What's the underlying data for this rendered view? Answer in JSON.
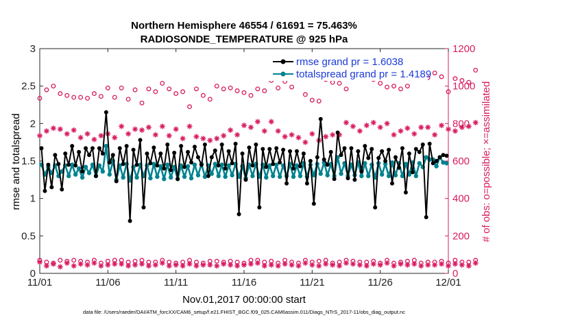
{
  "chart_data": {
    "type": "line",
    "title_line1": "Northern Hemisphere 46554 / 61691 = 75.463%",
    "title_line2": "RADIOSONDE_TEMPERATURE @ 925 hPa",
    "ylabel_left": "rmse and totalspread",
    "ylabel_right": "# of obs: o=possible; ×=assimilated",
    "xlabel": "Nov.01,2017 00:00:00 start",
    "footnote": "data file: /Users/raeder/DAI/ATM_forcXX/CAM6_setup/f.e21.FHIST_BGC.f09_025.CAM6assim.011/Diags_NTrS_2017-11/obs_diag_output.nc",
    "x_range": [
      0,
      30
    ],
    "x_tick_values": [
      0,
      5,
      10,
      15,
      20,
      25,
      30
    ],
    "x_tick_labels": [
      "11/01",
      "11/06",
      "11/11",
      "11/16",
      "11/21",
      "11/26",
      "12/01"
    ],
    "ylim_left": [
      0,
      3
    ],
    "y_left_ticks": [
      0,
      0.5,
      1,
      1.5,
      2,
      2.5,
      3
    ],
    "y_left_tick_labels": [
      "0",
      "0.5",
      "1",
      "1.5",
      "2",
      "2.5",
      "3"
    ],
    "ylim_right": [
      0,
      1200
    ],
    "y_right_ticks": [
      0,
      200,
      400,
      600,
      800,
      1000,
      1200
    ],
    "y_right_tick_labels": [
      "0",
      "200",
      "400",
      "600",
      "800",
      "1000",
      "1200"
    ],
    "colors": {
      "rmse": "#000000",
      "spread": "#00838f",
      "counts": "#d81b60",
      "legend_text": "#1a3ad8",
      "axis_right": "#d81b60"
    },
    "series": [
      {
        "name": "rmse grand pr = 1.6038",
        "axis": "left",
        "x_start": 0.125,
        "x_step": 0.25,
        "values": [
          1.67,
          1.1,
          1.45,
          1.15,
          1.58,
          1.46,
          1.12,
          1.6,
          1.45,
          1.7,
          1.44,
          1.62,
          1.36,
          1.67,
          1.58,
          1.67,
          1.3,
          1.67,
          1.6,
          2.15,
          1.48,
          1.58,
          1.23,
          1.67,
          1.46,
          1.7,
          0.7,
          1.65,
          1.45,
          1.78,
          0.88,
          1.6,
          1.47,
          1.68,
          1.44,
          1.6,
          1.4,
          1.72,
          1.38,
          1.61,
          1.26,
          1.7,
          1.42,
          1.62,
          1.48,
          1.69,
          1.55,
          1.45,
          1.72,
          1.3,
          1.55,
          1.64,
          1.44,
          1.72,
          1.4,
          1.63,
          1.47,
          1.73,
          0.79,
          1.6,
          1.25,
          1.68,
          1.44,
          1.72,
          0.88,
          1.66,
          1.42,
          1.66,
          1.46,
          1.67,
          1.48,
          1.65,
          1.2,
          1.63,
          1.4,
          1.63,
          1.43,
          1.6,
          1.2,
          1.5,
          0.93,
          1.55,
          2.06,
          1.52,
          1.45,
          1.62,
          1.26,
          1.88,
          1.58,
          1.67,
          1.27,
          1.67,
          1.25,
          1.63,
          1.36,
          1.7,
          1.54,
          1.66,
          0.88,
          1.54,
          1.63,
          1.5,
          1.65,
          1.2,
          1.55,
          1.41,
          1.67,
          1.08,
          1.6,
          1.35,
          1.66,
          1.62,
          1.72,
          0.75,
          1.73,
          1.47,
          1.5,
          1.55,
          1.58,
          1.57
        ],
        "marker": "dot"
      },
      {
        "name": "totalspread grand pr = 1.4189",
        "axis": "left",
        "x_start": 0.125,
        "x_step": 0.25,
        "values": [
          1.45,
          1.32,
          1.42,
          1.34,
          1.44,
          1.3,
          1.36,
          1.44,
          1.3,
          1.45,
          1.32,
          1.4,
          1.28,
          1.42,
          1.34,
          1.45,
          1.3,
          1.44,
          1.36,
          1.7,
          1.32,
          1.5,
          1.25,
          1.44,
          1.28,
          1.46,
          1.24,
          1.42,
          1.28,
          1.45,
          1.3,
          1.44,
          1.27,
          1.46,
          1.29,
          1.43,
          1.26,
          1.45,
          1.28,
          1.42,
          1.26,
          1.44,
          1.29,
          1.43,
          1.27,
          1.45,
          1.31,
          1.46,
          1.29,
          1.44,
          1.33,
          1.46,
          1.3,
          1.45,
          1.29,
          1.44,
          1.31,
          1.46,
          1.29,
          1.43,
          1.27,
          1.45,
          1.3,
          1.46,
          1.29,
          1.45,
          1.28,
          1.44,
          1.3,
          1.45,
          1.29,
          1.44,
          1.3,
          1.46,
          1.29,
          1.44,
          1.3,
          1.47,
          1.29,
          1.45,
          1.31,
          1.46,
          1.33,
          1.48,
          1.31,
          1.46,
          1.3,
          1.55,
          1.33,
          1.47,
          1.3,
          1.45,
          1.31,
          1.48,
          1.3,
          1.47,
          1.3,
          1.45,
          1.28,
          1.47,
          1.32,
          1.46,
          1.3,
          1.48,
          1.31,
          1.47,
          1.3,
          1.46,
          1.32,
          1.48,
          1.3,
          1.47,
          1.42,
          1.55,
          1.52,
          1.52,
          1.43,
          1.55,
          1.48,
          1.47
        ],
        "marker": "dot"
      },
      {
        "name": "possible obs (upper)",
        "axis": "right",
        "x_start": 0.0,
        "x_step": 0.5,
        "values": [
          935,
          980,
          1000,
          960,
          950,
          940,
          940,
          935,
          960,
          945,
          990,
          940,
          990,
          930,
          980,
          910,
          985,
          970,
          1015,
          985,
          960,
          970,
          890,
          985,
          950,
          930,
          1000,
          985,
          990,
          975,
          965,
          950,
          985,
          975,
          1030,
          990,
          1025,
          995,
          1045,
          955,
          925,
          920,
          1035,
          1020,
          1015,
          985,
          1070,
          1075,
          1060,
          1035,
          1015,
          995,
          1000,
          985,
          1000,
          1040,
          1055,
          1045,
          1070,
          1050,
          970,
          1040,
          1030,
          1020,
          1085
        ],
        "marker": "circle"
      },
      {
        "name": "assimilated obs (upper)",
        "axis": "right",
        "x_start": 0.0,
        "x_step": 0.5,
        "values": [
          735,
          760,
          775,
          770,
          745,
          765,
          725,
          745,
          715,
          735,
          745,
          725,
          785,
          745,
          770,
          765,
          780,
          740,
          785,
          735,
          770,
          720,
          785,
          730,
          720,
          710,
          720,
          735,
          765,
          740,
          790,
          780,
          810,
          760,
          810,
          760,
          730,
          740,
          725,
          700,
          745,
          710,
          730,
          740,
          740,
          805,
          785,
          760,
          790,
          805,
          780,
          800,
          740,
          760,
          775,
          745,
          780,
          780,
          740,
          790,
          770,
          760,
          780,
          785,
          805
        ],
        "marker": "star"
      },
      {
        "name": "possible obs (lower)",
        "axis": "right",
        "x_start": 0.0,
        "x_step": 0.5,
        "values": [
          70,
          60,
          55,
          70,
          65,
          70,
          65,
          60,
          70,
          55,
          65,
          70,
          70,
          60,
          65,
          70,
          60,
          60,
          70,
          60,
          55,
          60,
          70,
          60,
          55,
          65,
          65,
          60,
          65,
          60,
          55,
          70,
          70,
          60,
          65,
          55,
          70,
          60,
          55,
          70,
          60,
          65,
          70,
          55,
          60,
          70,
          65,
          60,
          60,
          65,
          55,
          70,
          55,
          60,
          65,
          70,
          55,
          60,
          60,
          65,
          55,
          70,
          60,
          60,
          70
        ],
        "marker": "circle"
      },
      {
        "name": "assimilated obs (lower)",
        "axis": "right",
        "x_start": 0.0,
        "x_step": 0.5,
        "values": [
          60,
          40,
          50,
          35,
          55,
          40,
          50,
          45,
          55,
          40,
          45,
          50,
          50,
          40,
          45,
          50,
          40,
          45,
          55,
          40,
          45,
          40,
          50,
          40,
          45,
          45,
          40,
          50,
          45,
          40,
          45,
          50,
          55,
          40,
          45,
          40,
          50,
          45,
          40,
          55,
          45,
          40,
          50,
          45,
          40,
          55,
          50,
          45,
          40,
          50,
          45,
          55,
          40,
          50,
          45,
          50,
          40,
          45,
          45,
          50,
          40,
          50,
          45,
          40,
          55
        ],
        "marker": "star"
      }
    ],
    "legend": [
      {
        "label": "rmse grand pr = 1.6038",
        "color": "#000000"
      },
      {
        "label": "totalspread grand pr = 1.4189",
        "color": "#00838f"
      }
    ],
    "legend_position": "top-right"
  }
}
